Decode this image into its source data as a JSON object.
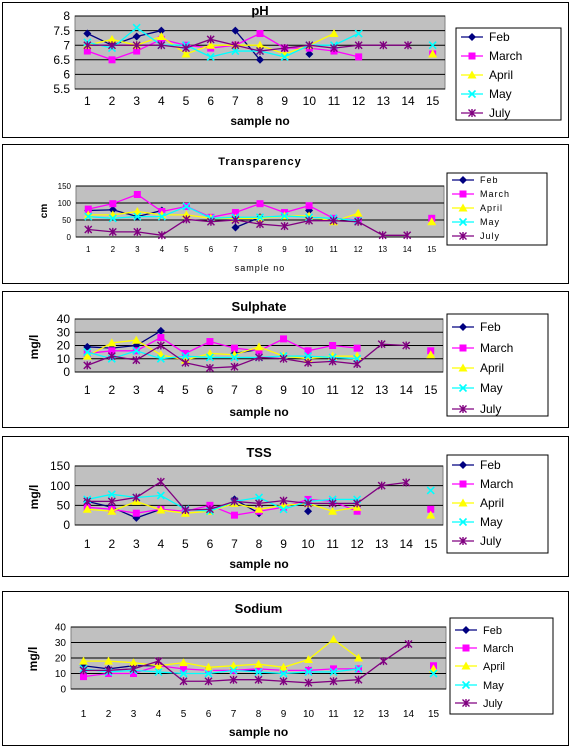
{
  "colors": {
    "plot_bg": "#c0c0c0",
    "Feb": "#000080",
    "March": "#ff00ff",
    "April": "#ffff00",
    "May": "#00ffff",
    "July": "#800080"
  },
  "chart_data": [
    {
      "type": "line",
      "title": "pH",
      "xlabel": "sample no",
      "ylabel": "",
      "x": [
        1,
        2,
        3,
        4,
        5,
        6,
        7,
        8,
        9,
        10,
        11,
        12,
        13,
        14,
        15
      ],
      "yticks": [
        "5.5",
        "6",
        "6.5",
        "7",
        "7.5",
        "8"
      ],
      "ylim": [
        5.5,
        8
      ],
      "grid": true,
      "legend": "right",
      "series": [
        {
          "name": "Feb",
          "marker": "diamond",
          "values": [
            7.4,
            7.0,
            7.3,
            7.5,
            null,
            null,
            7.5,
            6.5,
            null,
            6.7,
            null,
            null,
            null,
            null,
            null
          ]
        },
        {
          "name": "March",
          "marker": "square",
          "values": [
            6.8,
            6.5,
            6.8,
            7.2,
            7.0,
            6.9,
            7.0,
            7.4,
            6.9,
            6.9,
            6.8,
            6.6,
            null,
            null,
            6.7
          ]
        },
        {
          "name": "April",
          "marker": "triangle",
          "values": [
            7.0,
            7.2,
            7.0,
            7.3,
            6.7,
            7.0,
            7.0,
            7.0,
            6.7,
            7.0,
            7.4,
            null,
            null,
            null,
            6.7
          ]
        },
        {
          "name": "May",
          "marker": "x",
          "values": [
            7.1,
            6.9,
            7.6,
            7.0,
            7.0,
            6.6,
            6.8,
            6.8,
            6.6,
            7.0,
            7.0,
            7.4,
            null,
            null,
            7.0
          ]
        },
        {
          "name": "July",
          "marker": "star",
          "values": [
            7.0,
            7.0,
            7.0,
            7.0,
            6.9,
            7.2,
            7.0,
            6.8,
            6.9,
            7.0,
            6.9,
            7.0,
            7.0,
            7.0,
            null
          ]
        }
      ]
    },
    {
      "type": "line",
      "title": "Transparency",
      "xlabel": "sample no",
      "ylabel": "cm",
      "x": [
        1,
        2,
        3,
        4,
        5,
        6,
        7,
        8,
        9,
        10,
        11,
        12,
        13,
        14,
        15
      ],
      "yticks": [
        "0",
        "50",
        "100",
        "150"
      ],
      "ylim": [
        0,
        150
      ],
      "grid": true,
      "legend": "right",
      "series": [
        {
          "name": "Feb",
          "marker": "diamond",
          "values": [
            78,
            80,
            60,
            78,
            null,
            null,
            28,
            58,
            null,
            78,
            null,
            null,
            null,
            null,
            null
          ]
        },
        {
          "name": "March",
          "marker": "square",
          "values": [
            82,
            98,
            125,
            75,
            90,
            58,
            72,
            98,
            72,
            92,
            55,
            50,
            null,
            null,
            55
          ]
        },
        {
          "name": "April",
          "marker": "triangle",
          "values": [
            65,
            65,
            75,
            65,
            65,
            55,
            55,
            55,
            62,
            62,
            45,
            70,
            null,
            null,
            45
          ]
        },
        {
          "name": "May",
          "marker": "x",
          "values": [
            60,
            55,
            60,
            60,
            90,
            55,
            58,
            58,
            62,
            58,
            55,
            48,
            null,
            null,
            null
          ]
        },
        {
          "name": "July",
          "marker": "star",
          "values": [
            22,
            15,
            15,
            5,
            52,
            45,
            50,
            38,
            32,
            48,
            48,
            45,
            5,
            5,
            null
          ]
        }
      ]
    },
    {
      "type": "line",
      "title": "Sulphate",
      "xlabel": "sample no",
      "ylabel": "mg/l",
      "x": [
        1,
        2,
        3,
        4,
        5,
        6,
        7,
        8,
        9,
        10,
        11,
        12,
        13,
        14,
        15
      ],
      "yticks": [
        "0",
        "10",
        "20",
        "30",
        "40"
      ],
      "ylim": [
        0,
        40
      ],
      "grid": true,
      "legend": "right",
      "series": [
        {
          "name": "Feb",
          "marker": "diamond",
          "values": [
            19,
            18,
            20,
            31,
            null,
            null,
            14,
            17,
            null,
            11,
            null,
            null,
            null,
            null,
            null
          ]
        },
        {
          "name": "March",
          "marker": "square",
          "values": [
            14,
            16,
            16,
            26,
            14,
            23,
            18,
            16,
            25,
            16,
            20,
            18,
            null,
            null,
            16
          ]
        },
        {
          "name": "April",
          "marker": "triangle",
          "values": [
            12,
            22,
            24,
            13,
            9,
            14,
            13,
            19,
            12,
            10,
            12,
            12,
            null,
            null,
            13
          ]
        },
        {
          "name": "May",
          "marker": "x",
          "values": [
            15,
            10,
            16,
            10,
            12,
            11,
            11,
            11,
            12,
            12,
            11,
            10,
            null,
            null,
            null
          ]
        },
        {
          "name": "July",
          "marker": "star",
          "values": [
            5,
            12,
            9,
            20,
            7,
            3,
            4,
            11,
            10,
            7,
            8,
            6,
            21,
            20,
            null
          ]
        }
      ]
    },
    {
      "type": "line",
      "title": "TSS",
      "xlabel": "sample no",
      "ylabel": "mg/l",
      "x": [
        1,
        2,
        3,
        4,
        5,
        6,
        7,
        8,
        9,
        10,
        11,
        12,
        13,
        14,
        15
      ],
      "yticks": [
        "0",
        "50",
        "100",
        "150"
      ],
      "ylim": [
        0,
        150
      ],
      "grid": true,
      "legend": "right",
      "series": [
        {
          "name": "Feb",
          "marker": "diamond",
          "values": [
            60,
            45,
            18,
            40,
            null,
            null,
            65,
            30,
            null,
            35,
            null,
            null,
            null,
            null,
            null
          ]
        },
        {
          "name": "March",
          "marker": "square",
          "values": [
            45,
            40,
            30,
            40,
            35,
            50,
            25,
            35,
            45,
            65,
            60,
            35,
            null,
            null,
            40
          ]
        },
        {
          "name": "April",
          "marker": "triangle",
          "values": [
            40,
            35,
            60,
            38,
            30,
            35,
            55,
            40,
            50,
            55,
            35,
            45,
            null,
            null,
            25
          ]
        },
        {
          "name": "May",
          "marker": "x",
          "values": [
            65,
            78,
            70,
            75,
            40,
            35,
            60,
            70,
            40,
            60,
            65,
            65,
            null,
            null,
            88
          ]
        },
        {
          "name": "July",
          "marker": "star",
          "values": [
            60,
            60,
            70,
            110,
            38,
            40,
            60,
            55,
            62,
            55,
            55,
            55,
            100,
            108,
            null
          ]
        }
      ]
    },
    {
      "type": "line",
      "title": "Sodium",
      "xlabel": "sample no",
      "ylabel": "mg/l",
      "x": [
        1,
        2,
        3,
        4,
        5,
        6,
        7,
        8,
        9,
        10,
        11,
        12,
        13,
        14,
        15
      ],
      "yticks": [
        "0",
        "10",
        "20",
        "30",
        "40"
      ],
      "ylim": [
        0,
        40
      ],
      "grid": true,
      "legend": "right",
      "series": [
        {
          "name": "Feb",
          "marker": "diamond",
          "values": [
            15,
            13,
            15,
            15,
            null,
            null,
            12,
            12,
            null,
            12,
            null,
            null,
            null,
            null,
            null
          ]
        },
        {
          "name": "March",
          "marker": "square",
          "values": [
            8,
            10,
            10,
            15,
            13,
            12,
            12,
            13,
            12,
            12,
            13,
            13,
            null,
            null,
            15
          ]
        },
        {
          "name": "April",
          "marker": "triangle",
          "values": [
            18,
            18,
            17,
            15,
            17,
            14,
            15,
            16,
            14,
            19,
            32,
            20,
            null,
            null,
            13
          ]
        },
        {
          "name": "May",
          "marker": "x",
          "values": [
            13,
            11,
            12,
            11,
            10,
            10,
            12,
            11,
            10,
            11,
            11,
            13,
            null,
            null,
            10
          ]
        },
        {
          "name": "July",
          "marker": "star",
          "values": [
            12,
            12,
            13,
            18,
            5,
            5,
            6,
            6,
            5,
            4,
            5,
            6,
            18,
            29,
            null
          ]
        }
      ]
    }
  ]
}
